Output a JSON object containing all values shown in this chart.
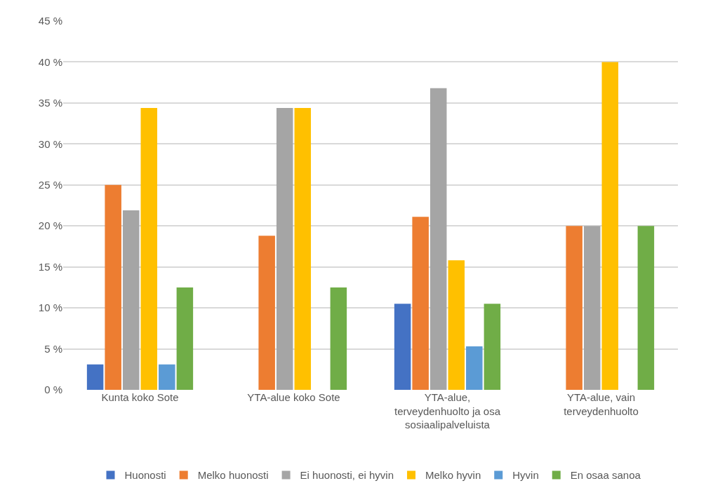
{
  "chart_data": {
    "type": "bar",
    "categories": [
      "Kunta koko Sote",
      "YTA-alue koko Sote",
      "YTA-alue, terveydenhuolto ja osa sosiaalipalveluista",
      "YTA-alue, vain terveydenhuolto"
    ],
    "series": [
      {
        "name": "Huonosti",
        "color": "#4472c4",
        "values": [
          3.1,
          null,
          10.5,
          null
        ]
      },
      {
        "name": "Melko huonosti",
        "color": "#ed7d31",
        "values": [
          25.0,
          18.8,
          21.1,
          20.0
        ]
      },
      {
        "name": "Ei huonosti, ei hyvin",
        "color": "#a5a5a5",
        "values": [
          21.9,
          34.4,
          36.8,
          20.0
        ]
      },
      {
        "name": "Melko hyvin",
        "color": "#ffc000",
        "values": [
          34.4,
          34.4,
          15.8,
          40.0
        ]
      },
      {
        "name": "Hyvin",
        "color": "#5b9bd5",
        "values": [
          3.1,
          null,
          5.3,
          null
        ]
      },
      {
        "name": "En osaa sanoa",
        "color": "#70ad47",
        "values": [
          12.5,
          12.5,
          10.5,
          20.0
        ]
      }
    ],
    "ylim": [
      0,
      45
    ],
    "yticks": [
      {
        "value": 0,
        "label": "0 %"
      },
      {
        "value": 5,
        "label": "5 %"
      },
      {
        "value": 10,
        "label": "10 %"
      },
      {
        "value": 15,
        "label": "15 %"
      },
      {
        "value": 20,
        "label": "20 %"
      },
      {
        "value": 25,
        "label": "25 %"
      },
      {
        "value": 30,
        "label": "30 %"
      },
      {
        "value": 35,
        "label": "35 %"
      },
      {
        "value": 40,
        "label": "40 %"
      },
      {
        "value": 45,
        "label": "45 %"
      }
    ],
    "grid": "y",
    "legend": "bottom"
  }
}
